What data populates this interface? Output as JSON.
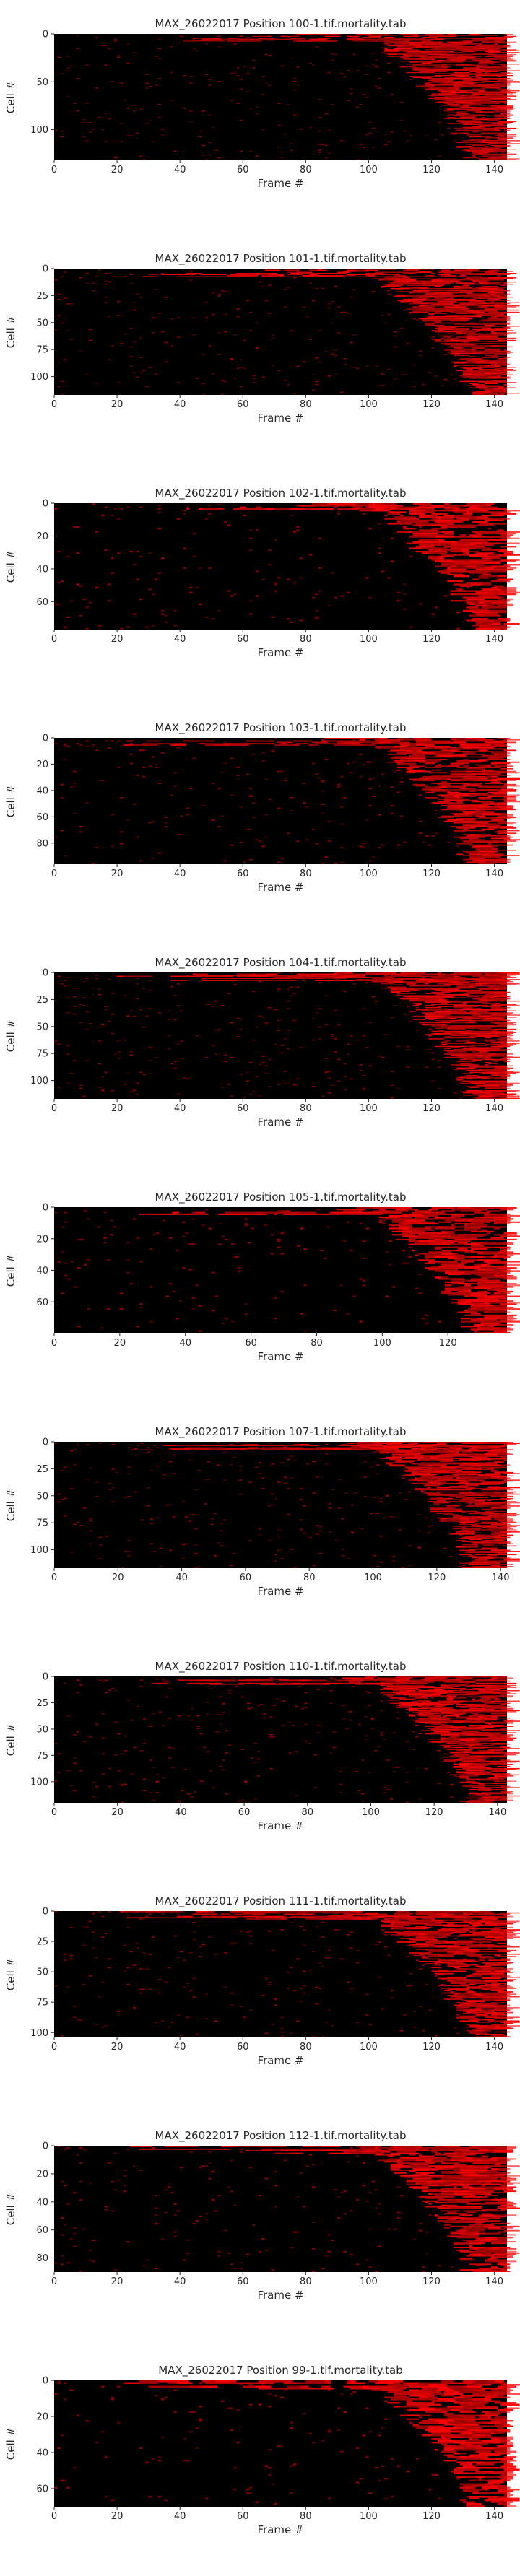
{
  "chart_data": [
    {
      "type": "heatmap",
      "title": "MAX_26022017 Position 100-1.tif.mortality.tab",
      "xlabel": "Frame #",
      "ylabel": "Cell #",
      "x_ticks": [
        0,
        20,
        40,
        60,
        80,
        100,
        120,
        140
      ],
      "y_ticks": [
        0,
        50,
        100
      ],
      "xlim": [
        0,
        144
      ],
      "ylim": [
        0,
        132
      ],
      "n_cells": 132,
      "n_frames": 144,
      "colormap": [
        "#000000",
        "#ff0000"
      ]
    },
    {
      "type": "heatmap",
      "title": "MAX_26022017 Position 101-1.tif.mortality.tab",
      "xlabel": "Frame #",
      "ylabel": "Cell #",
      "x_ticks": [
        0,
        20,
        40,
        60,
        80,
        100,
        120,
        140
      ],
      "y_ticks": [
        0,
        25,
        50,
        75,
        100
      ],
      "xlim": [
        0,
        144
      ],
      "ylim": [
        0,
        117
      ],
      "n_cells": 117,
      "n_frames": 144,
      "colormap": [
        "#000000",
        "#ff0000"
      ]
    },
    {
      "type": "heatmap",
      "title": "MAX_26022017 Position 102-1.tif.mortality.tab",
      "xlabel": "Frame #",
      "ylabel": "Cell #",
      "x_ticks": [
        0,
        20,
        40,
        60,
        80,
        100,
        120,
        140
      ],
      "y_ticks": [
        0,
        20,
        40,
        60
      ],
      "xlim": [
        0,
        144
      ],
      "ylim": [
        0,
        77
      ],
      "n_cells": 77,
      "n_frames": 144,
      "colormap": [
        "#000000",
        "#ff0000"
      ]
    },
    {
      "type": "heatmap",
      "title": "MAX_26022017 Position 103-1.tif.mortality.tab",
      "xlabel": "Frame #",
      "ylabel": "Cell #",
      "x_ticks": [
        0,
        20,
        40,
        60,
        80,
        100,
        120,
        140
      ],
      "y_ticks": [
        0,
        20,
        40,
        60,
        80
      ],
      "xlim": [
        0,
        144
      ],
      "ylim": [
        0,
        96
      ],
      "n_cells": 96,
      "n_frames": 144,
      "colormap": [
        "#000000",
        "#ff0000"
      ]
    },
    {
      "type": "heatmap",
      "title": "MAX_26022017 Position 104-1.tif.mortality.tab",
      "xlabel": "Frame #",
      "ylabel": "Cell #",
      "x_ticks": [
        0,
        20,
        40,
        60,
        80,
        100,
        120,
        140
      ],
      "y_ticks": [
        0,
        25,
        50,
        75,
        100
      ],
      "xlim": [
        0,
        144
      ],
      "ylim": [
        0,
        117
      ],
      "n_cells": 117,
      "n_frames": 144,
      "colormap": [
        "#000000",
        "#ff0000"
      ]
    },
    {
      "type": "heatmap",
      "title": "MAX_26022017 Position 105-1.tif.mortality.tab",
      "xlabel": "Frame #",
      "ylabel": "Cell #",
      "x_ticks": [
        0,
        20,
        40,
        60,
        80,
        100,
        120
      ],
      "y_ticks": [
        0,
        20,
        40,
        60
      ],
      "xlim": [
        0,
        138
      ],
      "ylim": [
        0,
        80
      ],
      "n_cells": 80,
      "n_frames": 138,
      "colormap": [
        "#000000",
        "#ff0000"
      ]
    },
    {
      "type": "heatmap",
      "title": "MAX_26022017 Position 107-1.tif.mortality.tab",
      "xlabel": "Frame #",
      "ylabel": "Cell #",
      "x_ticks": [
        0,
        20,
        40,
        60,
        80,
        100,
        120,
        140
      ],
      "y_ticks": [
        0,
        25,
        50,
        75,
        100
      ],
      "xlim": [
        0,
        142
      ],
      "ylim": [
        0,
        117
      ],
      "n_cells": 117,
      "n_frames": 142,
      "colormap": [
        "#000000",
        "#ff0000"
      ]
    },
    {
      "type": "heatmap",
      "title": "MAX_26022017 Position 110-1.tif.mortality.tab",
      "xlabel": "Frame #",
      "ylabel": "Cell #",
      "x_ticks": [
        0,
        20,
        40,
        60,
        80,
        100,
        120,
        140
      ],
      "y_ticks": [
        0,
        25,
        50,
        75,
        100
      ],
      "xlim": [
        0,
        143
      ],
      "ylim": [
        0,
        120
      ],
      "n_cells": 120,
      "n_frames": 143,
      "colormap": [
        "#000000",
        "#ff0000"
      ]
    },
    {
      "type": "heatmap",
      "title": "MAX_26022017 Position 111-1.tif.mortality.tab",
      "xlabel": "Frame #",
      "ylabel": "Cell #",
      "x_ticks": [
        0,
        20,
        40,
        60,
        80,
        100,
        120,
        140
      ],
      "y_ticks": [
        0,
        25,
        50,
        75,
        100
      ],
      "xlim": [
        0,
        144
      ],
      "ylim": [
        0,
        104
      ],
      "n_cells": 104,
      "n_frames": 144,
      "colormap": [
        "#000000",
        "#ff0000"
      ]
    },
    {
      "type": "heatmap",
      "title": "MAX_26022017 Position 112-1.tif.mortality.tab",
      "xlabel": "Frame #",
      "ylabel": "Cell #",
      "x_ticks": [
        0,
        20,
        40,
        60,
        80,
        100,
        120,
        140
      ],
      "y_ticks": [
        0,
        20,
        40,
        60,
        80
      ],
      "xlim": [
        0,
        144
      ],
      "ylim": [
        0,
        90
      ],
      "n_cells": 90,
      "n_frames": 144,
      "colormap": [
        "#000000",
        "#ff0000"
      ]
    },
    {
      "type": "heatmap",
      "title": "MAX_26022017 Position 99-1.tif.mortality.tab",
      "xlabel": "Frame #",
      "ylabel": "Cell #",
      "x_ticks": [
        0,
        20,
        40,
        60,
        80,
        100,
        120,
        140
      ],
      "y_ticks": [
        0,
        20,
        40,
        60
      ],
      "xlim": [
        0,
        144
      ],
      "ylim": [
        0,
        70
      ],
      "n_cells": 70,
      "n_frames": 144,
      "colormap": [
        "#000000",
        "#ff0000"
      ]
    }
  ]
}
